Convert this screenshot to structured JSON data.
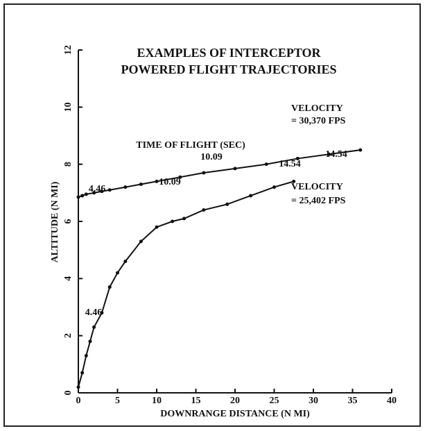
{
  "chart_data": {
    "type": "line",
    "title": [
      "EXAMPLES OF INTERCEPTOR",
      "POWERED FLIGHT TRAJECTORIES"
    ],
    "x_label": "DOWNRANGE DISTANCE (N MI)",
    "y_label": "ALTITUDE (N MI)",
    "annotations": [
      "TIME OF FLIGHT (SEC)",
      "VELOCITY",
      "= 30,370 FPS",
      "VELOCITY",
      "= 25,402 FPS",
      "4.46",
      "10.09",
      "14.54",
      "4.46",
      "10.09",
      "14.54"
    ],
    "series": [
      {
        "color": "#111111",
        "x": [
          0,
          0.5,
          1,
          2,
          3,
          4,
          6,
          8,
          10,
          13,
          16,
          20,
          24,
          28,
          32,
          36
        ],
        "values": [
          6.85,
          6.9,
          6.95,
          7.0,
          7.05,
          7.1,
          7.2,
          7.3,
          7.4,
          7.55,
          7.7,
          7.85,
          8.0,
          8.2,
          8.35,
          8.5
        ]
      },
      {
        "color": "#111111",
        "x": [
          0,
          0.5,
          1,
          1.5,
          2,
          3,
          4,
          5,
          6,
          8,
          10,
          12,
          13.5,
          16,
          19,
          22,
          25,
          27.5
        ],
        "values": [
          0.2,
          0.7,
          1.3,
          1.8,
          2.3,
          2.8,
          3.7,
          4.2,
          4.6,
          5.3,
          5.8,
          6.0,
          6.1,
          6.4,
          6.6,
          6.9,
          7.2,
          7.4
        ]
      }
    ],
    "xlim": [
      0,
      40
    ],
    "xticks": [
      0,
      5,
      10,
      15,
      20,
      25,
      30,
      35,
      40
    ],
    "ylim": [
      0,
      12
    ],
    "yticks": [
      0,
      2,
      4,
      6,
      8,
      10,
      12
    ]
  }
}
